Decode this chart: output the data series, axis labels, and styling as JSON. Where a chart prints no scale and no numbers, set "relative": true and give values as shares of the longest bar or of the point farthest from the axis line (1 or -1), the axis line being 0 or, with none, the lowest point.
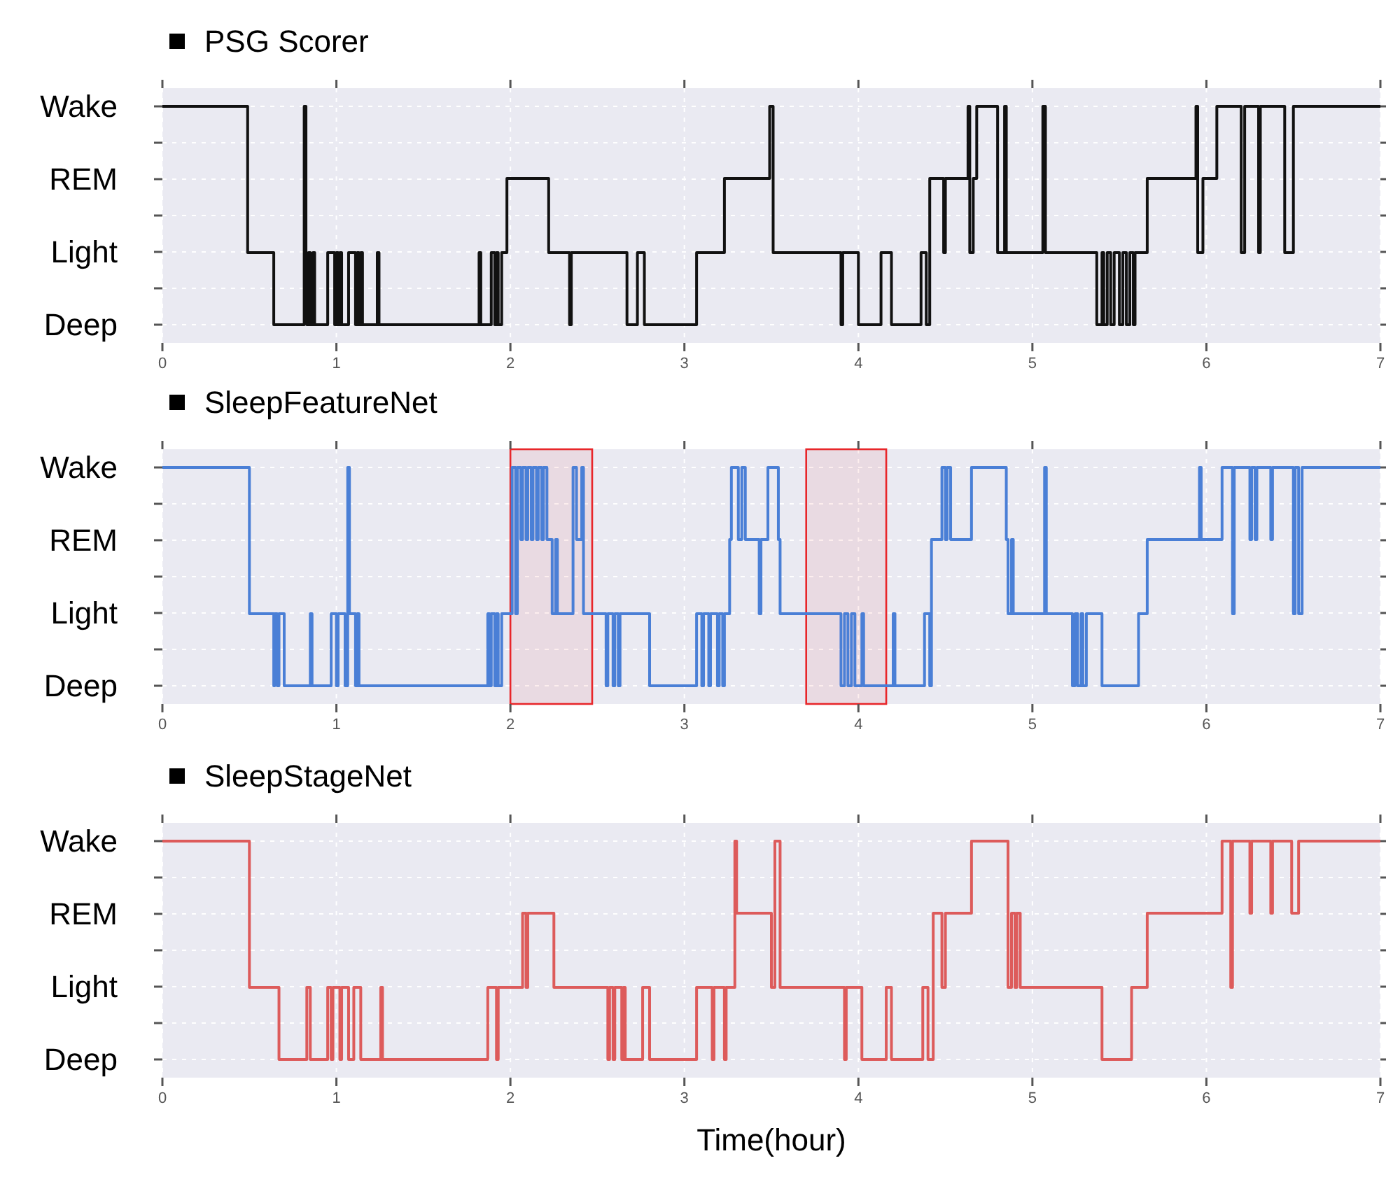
{
  "chart_data": [
    {
      "type": "step",
      "title": "PSG Scorer",
      "relative": true,
      "xlim": [
        0,
        7
      ],
      "xticks": [
        0,
        1,
        2,
        3,
        4,
        5,
        6,
        7
      ],
      "annotations": [
        "Deep",
        "Light",
        "REM",
        "Wake"
      ],
      "grid": true,
      "series": [
        {
          "color": "#111111",
          "x": [
            0,
            0.49,
            0.64,
            0.815,
            0.825,
            0.83,
            0.84,
            0.85,
            0.865,
            0.875,
            0.95,
            0.99,
            1.0,
            1.01,
            1.02,
            1.03,
            1.07,
            1.11,
            1.12,
            1.13,
            1.14,
            1.15,
            1.235,
            1.245,
            1.82,
            1.83,
            1.89,
            1.91,
            1.92,
            1.93,
            1.95,
            1.98,
            2.22,
            2.34,
            2.35,
            2.67,
            2.73,
            2.77,
            3.07,
            3.23,
            3.49,
            3.51,
            3.9,
            3.91,
            4.0,
            4.13,
            4.19,
            4.36,
            4.39,
            4.41,
            4.49,
            4.5,
            4.63,
            4.64,
            4.66,
            4.68,
            4.8,
            4.84,
            4.85,
            5.06,
            5.075,
            5.37,
            5.4,
            5.41,
            5.43,
            5.45,
            5.47,
            5.5,
            5.52,
            5.54,
            5.56,
            5.58,
            5.59,
            5.66,
            5.94,
            5.95,
            5.98,
            6.06,
            6.2,
            6.22,
            6.3,
            6.31,
            6.45,
            6.5,
            7
          ],
          "values": [
            1,
            0.33,
            0,
            1,
            0.33,
            0,
            0.33,
            0,
            0.33,
            0,
            0.33,
            0,
            0.33,
            0,
            0.33,
            0,
            0.33,
            0,
            0.33,
            0,
            0.33,
            0,
            0.33,
            0,
            0.33,
            0,
            0.33,
            0,
            0.33,
            0,
            0.33,
            0.67,
            0.33,
            0,
            0.33,
            0,
            0.33,
            0,
            0.33,
            0.67,
            1,
            0.33,
            0,
            0.33,
            0,
            0.33,
            0,
            0.33,
            0,
            0.67,
            0.33,
            0.67,
            1,
            0.33,
            0.67,
            1,
            0.33,
            1,
            0.33,
            1,
            0.33,
            0,
            0.33,
            0,
            0.33,
            0,
            0.33,
            0,
            0.33,
            0,
            0.33,
            0,
            0.33,
            0.67,
            1,
            0.33,
            0.67,
            1,
            0.33,
            1,
            0.33,
            1,
            0.33,
            1,
            1
          ]
        }
      ]
    },
    {
      "type": "step",
      "title": "SleepFeatureNet",
      "relative": true,
      "xlim": [
        0,
        7
      ],
      "xticks": [
        0,
        1,
        2,
        3,
        4,
        5,
        6,
        7
      ],
      "annotations": [
        "Deep",
        "Light",
        "REM",
        "Wake"
      ],
      "grid": true,
      "bands": [
        {
          "axis": "x",
          "from": 2.0,
          "to": 2.47,
          "color": "#e8262a"
        },
        {
          "axis": "x",
          "from": 3.7,
          "to": 4.16,
          "color": "#e8262a"
        }
      ],
      "series": [
        {
          "color": "#4a7fd6",
          "x": [
            0,
            0.5,
            0.64,
            0.645,
            0.66,
            0.67,
            0.7,
            0.85,
            0.86,
            0.97,
            1.0,
            1.01,
            1.05,
            1.065,
            1.075,
            1.11,
            1.12,
            1.13,
            1.87,
            1.88,
            1.89,
            1.91,
            1.92,
            1.93,
            1.95,
            2.01,
            2.03,
            2.04,
            2.06,
            2.07,
            2.09,
            2.1,
            2.12,
            2.13,
            2.15,
            2.16,
            2.18,
            2.19,
            2.21,
            2.24,
            2.26,
            2.27,
            2.36,
            2.38,
            2.41,
            2.42,
            2.55,
            2.56,
            2.59,
            2.6,
            2.62,
            2.63,
            2.8,
            3.07,
            3.1,
            3.11,
            3.14,
            3.15,
            3.19,
            3.2,
            3.22,
            3.23,
            3.26,
            3.27,
            3.31,
            3.33,
            3.35,
            3.43,
            3.44,
            3.48,
            3.54,
            3.55,
            3.9,
            3.92,
            3.94,
            3.96,
            3.98,
            4.02,
            4.03,
            4.2,
            4.21,
            4.38,
            4.41,
            4.42,
            4.48,
            4.5,
            4.51,
            4.53,
            4.65,
            4.85,
            4.86,
            4.88,
            4.89,
            5.07,
            5.08,
            5.23,
            5.245,
            5.26,
            5.28,
            5.29,
            5.31,
            5.4,
            5.61,
            5.66,
            5.96,
            5.97,
            6.09,
            6.15,
            6.16,
            6.25,
            6.26,
            6.28,
            6.29,
            6.37,
            6.38,
            6.5,
            6.51,
            6.53,
            6.55,
            7
          ],
          "values": [
            1,
            0.33,
            0,
            0.33,
            0,
            0.33,
            0,
            0.33,
            0,
            0.33,
            0,
            0.33,
            0,
            1,
            0.33,
            0,
            0.33,
            0,
            0.33,
            0,
            0.33,
            0,
            0.33,
            0,
            0.33,
            1,
            0.33,
            1,
            0.67,
            1,
            0.67,
            1,
            0.67,
            1,
            0.67,
            1,
            0.67,
            1,
            0.67,
            0.33,
            0.67,
            0.33,
            1,
            0.67,
            1,
            0.33,
            0,
            0.33,
            0,
            0.33,
            0,
            0.33,
            0,
            0.33,
            0,
            0.33,
            0,
            0.33,
            0,
            0.33,
            0,
            0.33,
            0.67,
            1,
            0.67,
            1,
            0.67,
            0.33,
            0.67,
            1,
            0.67,
            0.33,
            0,
            0.33,
            0,
            0.33,
            0,
            0.33,
            0,
            0.33,
            0,
            0.33,
            0,
            0.67,
            1,
            0.67,
            1,
            0.67,
            1,
            0.67,
            0.33,
            0.67,
            0.33,
            1,
            0.33,
            0,
            0.33,
            0,
            0.33,
            0,
            0.33,
            0,
            0.33,
            0.67,
            1,
            0.67,
            1,
            0.33,
            1,
            0.67,
            1,
            0.67,
            1,
            0.67,
            1,
            0.33,
            1,
            0.33,
            1,
            1
          ]
        }
      ]
    },
    {
      "type": "step",
      "title": "SleepStageNet",
      "relative": true,
      "xlabel": "Time(hour)",
      "xlim": [
        0,
        7
      ],
      "xticks": [
        0,
        1,
        2,
        3,
        4,
        5,
        6,
        7
      ],
      "annotations": [
        "Deep",
        "Light",
        "REM",
        "Wake"
      ],
      "grid": true,
      "series": [
        {
          "color": "#dd5b5b",
          "x": [
            0,
            0.5,
            0.67,
            0.83,
            0.85,
            0.95,
            0.97,
            0.98,
            1.02,
            1.03,
            1.07,
            1.1,
            1.14,
            1.255,
            1.265,
            1.87,
            1.92,
            1.93,
            2.07,
            2.09,
            2.1,
            2.25,
            2.56,
            2.57,
            2.59,
            2.6,
            2.64,
            2.65,
            2.66,
            2.76,
            2.8,
            3.07,
            3.16,
            3.17,
            3.23,
            3.24,
            3.29,
            3.3,
            3.5,
            3.52,
            3.55,
            3.92,
            3.93,
            4.02,
            4.16,
            4.19,
            4.37,
            4.4,
            4.43,
            4.48,
            4.5,
            4.65,
            4.86,
            4.88,
            4.9,
            4.91,
            4.93,
            5.4,
            5.57,
            5.66,
            6.09,
            6.14,
            6.15,
            6.25,
            6.26,
            6.37,
            6.38,
            6.49,
            6.53,
            7
          ],
          "values": [
            1,
            0.33,
            0,
            0.33,
            0,
            0.33,
            0,
            0.33,
            0,
            0.33,
            0,
            0.33,
            0,
            0.33,
            0,
            0.33,
            0,
            0.33,
            0.67,
            0.33,
            0.67,
            0.33,
            0,
            0.33,
            0,
            0.33,
            0,
            0.33,
            0,
            0.33,
            0,
            0.33,
            0,
            0.33,
            0,
            0.33,
            1,
            0.67,
            0.33,
            1,
            0.33,
            0,
            0.33,
            0,
            0.33,
            0,
            0.33,
            0,
            0.67,
            0.33,
            0.67,
            1,
            0.33,
            0.67,
            0.33,
            0.67,
            0.33,
            0,
            0.33,
            0.67,
            1,
            0.33,
            1,
            0.67,
            1,
            0.67,
            1,
            0.67,
            1,
            1
          ]
        }
      ]
    }
  ]
}
